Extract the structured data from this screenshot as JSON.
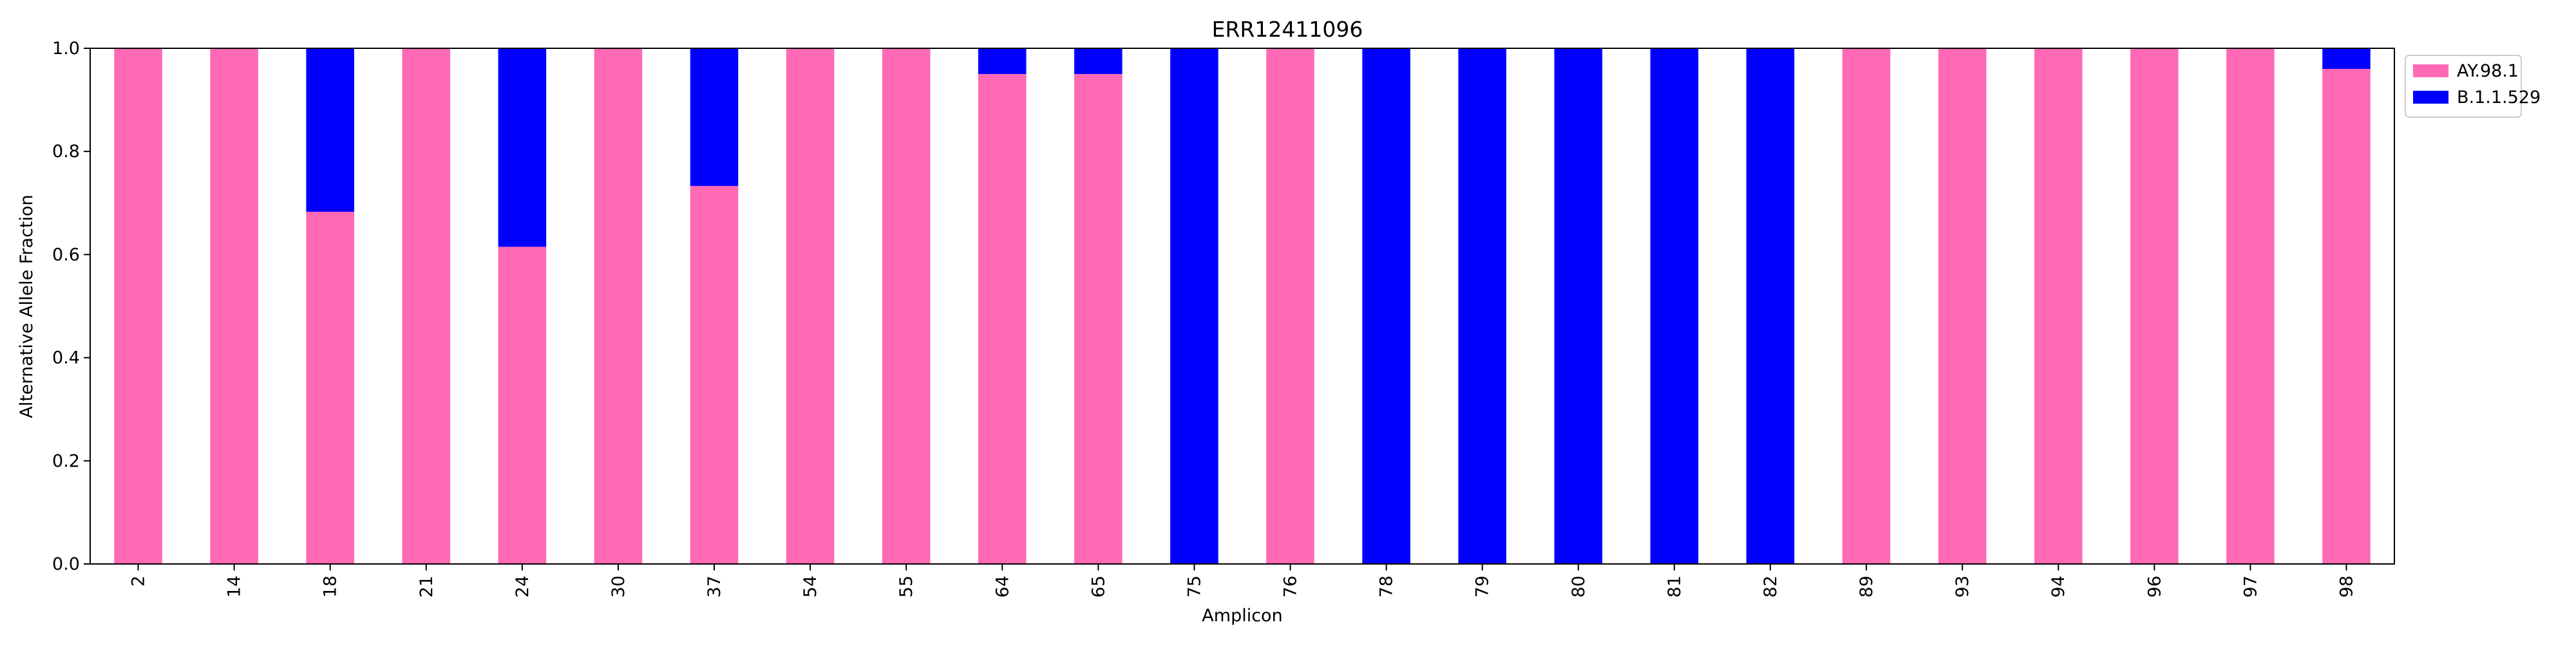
{
  "chart_data": {
    "type": "bar",
    "stacked": true,
    "title": "ERR12411096",
    "xlabel": "Amplicon",
    "ylabel": "Alternative Allele Fraction",
    "ylim": [
      0,
      1
    ],
    "yticks": [
      "0.0",
      "0.2",
      "0.4",
      "0.6",
      "0.8",
      "1.0"
    ],
    "grid": false,
    "legend_position": "outside-top-right",
    "categories": [
      "2",
      "14",
      "18",
      "21",
      "24",
      "30",
      "37",
      "54",
      "55",
      "64",
      "65",
      "75",
      "76",
      "78",
      "79",
      "80",
      "81",
      "82",
      "89",
      "93",
      "94",
      "96",
      "97",
      "98"
    ],
    "series": [
      {
        "name": "AY.98.1",
        "color": "#ff69b4",
        "values": [
          1.0,
          1.0,
          0.683,
          1.0,
          0.615,
          1.0,
          0.733,
          1.0,
          1.0,
          0.95,
          0.95,
          0.0,
          1.0,
          0.0,
          0.0,
          0.0,
          0.0,
          0.0,
          1.0,
          1.0,
          1.0,
          1.0,
          1.0,
          0.96
        ]
      },
      {
        "name": "B.1.1.529",
        "color": "#0000ff",
        "values": [
          0.0,
          0.0,
          0.317,
          0.0,
          0.385,
          0.0,
          0.267,
          0.0,
          0.0,
          0.05,
          0.05,
          1.0,
          0.0,
          1.0,
          1.0,
          1.0,
          1.0,
          1.0,
          0.0,
          0.0,
          0.0,
          0.0,
          0.0,
          0.04
        ]
      }
    ]
  }
}
